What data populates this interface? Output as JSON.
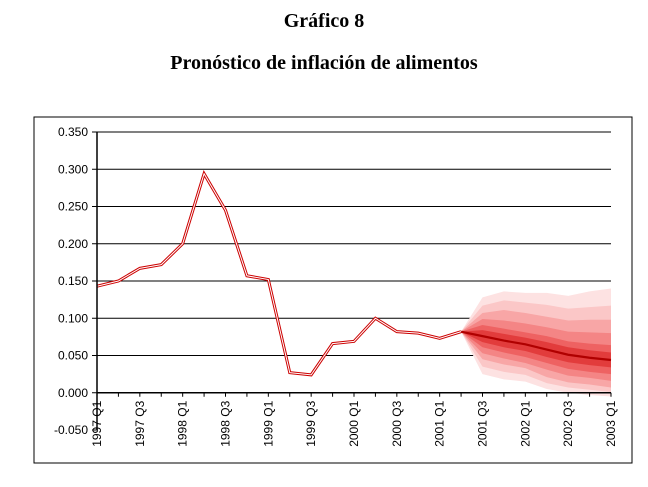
{
  "header": {
    "title": "Gráfico 8",
    "subtitle": "Pronóstico de inflación de alimentos"
  },
  "chart_data": {
    "type": "line",
    "title": "Pronóstico de inflación de alimentos",
    "xlabel": "",
    "ylabel": "",
    "ylim": [
      -0.05,
      0.35
    ],
    "yticks": [
      "0.350",
      "0.300",
      "0.250",
      "0.200",
      "0.150",
      "0.100",
      "0.050",
      "0.000",
      "-0.050"
    ],
    "xtick_labels": [
      "1997 Q1",
      "1997 Q3",
      "1998 Q1",
      "1998 Q3",
      "1999 Q1",
      "1999 Q3",
      "2000 Q1",
      "2000 Q3",
      "2001 Q1",
      "2001 Q3",
      "2002 Q1",
      "2002 Q3",
      "2003 Q1"
    ],
    "grid": true,
    "colors": {
      "history_outer": "#cc0000",
      "history_inner": "#ffffff",
      "forecast_center": "#b00000",
      "fan_shades": [
        "#fde2e2",
        "#fbc7c7",
        "#f8a6a6",
        "#f48585",
        "#ee6262",
        "#e23c3c"
      ]
    },
    "series": [
      {
        "type": "history",
        "x": [
          "1997 Q1",
          "1997 Q2",
          "1997 Q3",
          "1997 Q4",
          "1998 Q1",
          "1998 Q2",
          "1998 Q3",
          "1998 Q4",
          "1999 Q1",
          "1999 Q2",
          "1999 Q3",
          "1999 Q4",
          "2000 Q1",
          "2000 Q2",
          "2000 Q3",
          "2000 Q4",
          "2001 Q1",
          "2001 Q2"
        ],
        "values": [
          0.143,
          0.15,
          0.167,
          0.172,
          0.2,
          0.294,
          0.245,
          0.157,
          0.152,
          0.027,
          0.024,
          0.066,
          0.069,
          0.1,
          0.082,
          0.08,
          0.073,
          0.082
        ]
      },
      {
        "type": "forecast_center",
        "x": [
          "2001 Q2",
          "2001 Q3",
          "2001 Q4",
          "2002 Q1",
          "2002 Q2",
          "2002 Q3",
          "2002 Q4",
          "2003 Q1"
        ],
        "values": [
          0.082,
          0.076,
          0.07,
          0.065,
          0.058,
          0.051,
          0.047,
          0.044
        ]
      }
    ],
    "fan_bands": {
      "x": [
        "2001 Q2",
        "2001 Q3",
        "2001 Q4",
        "2002 Q1",
        "2002 Q2",
        "2002 Q3",
        "2002 Q4",
        "2003 Q1"
      ],
      "bands": [
        {
          "low": [
            0.082,
            0.025,
            0.018,
            0.015,
            0.005,
            0.0,
            -0.003,
            -0.005
          ],
          "high": [
            0.082,
            0.128,
            0.136,
            0.134,
            0.134,
            0.13,
            0.136,
            0.14
          ]
        },
        {
          "low": [
            0.082,
            0.035,
            0.028,
            0.024,
            0.013,
            0.007,
            0.004,
            0.001
          ],
          "high": [
            0.082,
            0.117,
            0.124,
            0.121,
            0.118,
            0.113,
            0.115,
            0.117
          ]
        },
        {
          "low": [
            0.082,
            0.045,
            0.038,
            0.033,
            0.021,
            0.014,
            0.011,
            0.007
          ],
          "high": [
            0.082,
            0.107,
            0.111,
            0.107,
            0.102,
            0.097,
            0.098,
            0.098
          ]
        },
        {
          "low": [
            0.082,
            0.053,
            0.046,
            0.04,
            0.031,
            0.023,
            0.02,
            0.016
          ],
          "high": [
            0.082,
            0.099,
            0.097,
            0.093,
            0.088,
            0.082,
            0.081,
            0.08
          ]
        },
        {
          "low": [
            0.082,
            0.061,
            0.054,
            0.048,
            0.04,
            0.032,
            0.028,
            0.025
          ],
          "high": [
            0.082,
            0.091,
            0.086,
            0.081,
            0.076,
            0.069,
            0.066,
            0.064
          ]
        },
        {
          "low": [
            0.082,
            0.068,
            0.061,
            0.056,
            0.048,
            0.041,
            0.037,
            0.034
          ],
          "high": [
            0.082,
            0.084,
            0.079,
            0.074,
            0.068,
            0.061,
            0.057,
            0.054
          ]
        }
      ]
    }
  }
}
